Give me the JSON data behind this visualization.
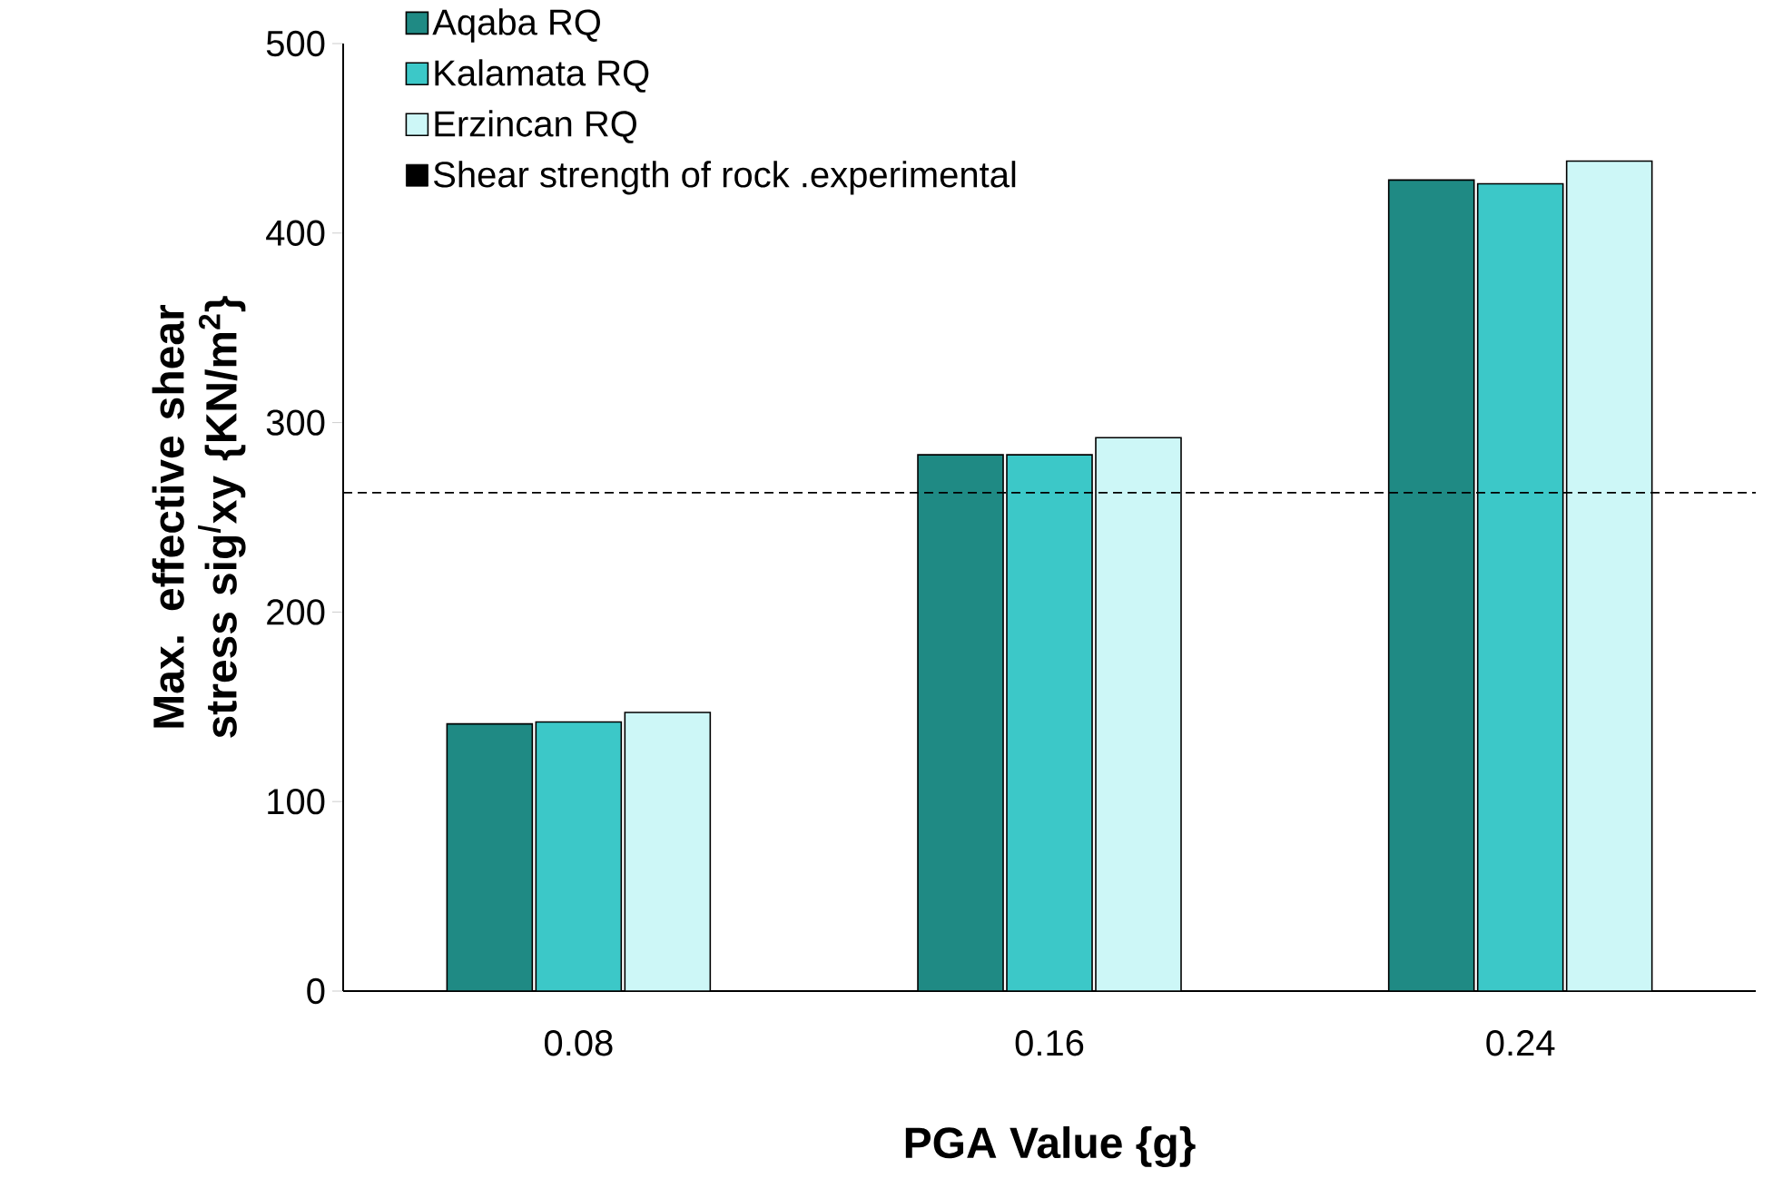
{
  "chart_data": {
    "type": "bar",
    "xlabel": "PGA Value {g}",
    "ylabel": "Max. effective shear stress sig$^{/}$xy {KN/m$^{2}$}",
    "categories": [
      "0.08",
      "0.16",
      "0.24"
    ],
    "series": [
      {
        "name": "Aqaba RQ",
        "color": "#1f8a84",
        "values": [
          141,
          283,
          428
        ]
      },
      {
        "name": "Kalamata RQ",
        "color": "#3cc8c8",
        "values": [
          142,
          283,
          426
        ]
      },
      {
        "name": "Erzincan RQ",
        "color": "#cdf7f7",
        "values": [
          147,
          292,
          438
        ]
      }
    ],
    "ref_lines": [
      {
        "axis": "y",
        "value": 263,
        "label": "Shear strength of rock .experimental",
        "color": "#000000",
        "line_style": "dashed"
      }
    ],
    "ylim": [
      0,
      500
    ],
    "yticks": [
      0,
      100,
      200,
      300,
      400,
      500
    ],
    "grid": false,
    "legend": "top left"
  }
}
